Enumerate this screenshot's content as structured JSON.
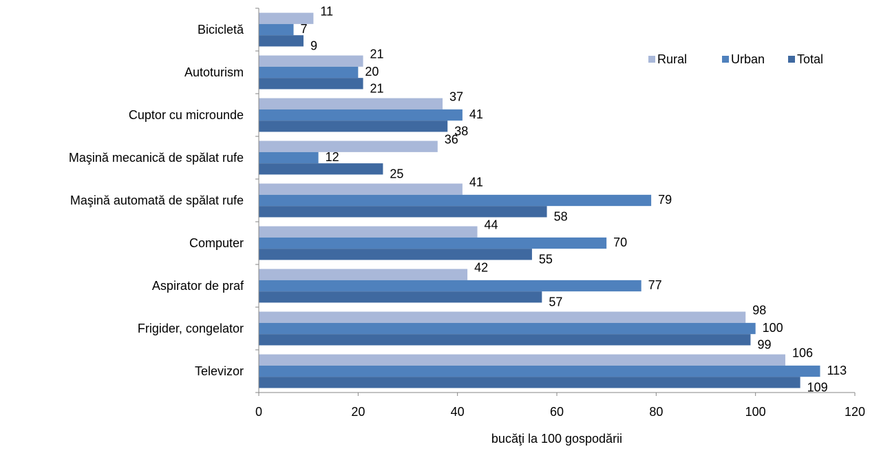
{
  "chart_data": {
    "type": "bar",
    "orientation": "horizontal",
    "title": "",
    "xlabel": "bucăţi la 100 gospodării",
    "ylabel": "",
    "xlim": [
      0,
      120
    ],
    "xticks": [
      0,
      20,
      40,
      60,
      80,
      100,
      120
    ],
    "grid": false,
    "legend_position": "top-right",
    "categories": [
      "Bicicletă",
      "Autoturism",
      "Cuptor cu microunde",
      "Maşină mecanică de spălat rufe",
      "Maşină automată de spălat rufe",
      "Computer",
      "Aspirator de praf",
      "Frigider, congelator",
      "Televizor"
    ],
    "series": [
      {
        "name": "Rural",
        "color": "#A9B8D9",
        "values": [
          11,
          21,
          37,
          36,
          41,
          44,
          42,
          98,
          106
        ]
      },
      {
        "name": "Urban",
        "color": "#4F81BD",
        "values": [
          7,
          20,
          41,
          12,
          79,
          70,
          77,
          100,
          113
        ]
      },
      {
        "name": "Total",
        "color": "#3F69A0",
        "values": [
          9,
          21,
          38,
          25,
          58,
          55,
          57,
          99,
          109
        ]
      }
    ]
  }
}
